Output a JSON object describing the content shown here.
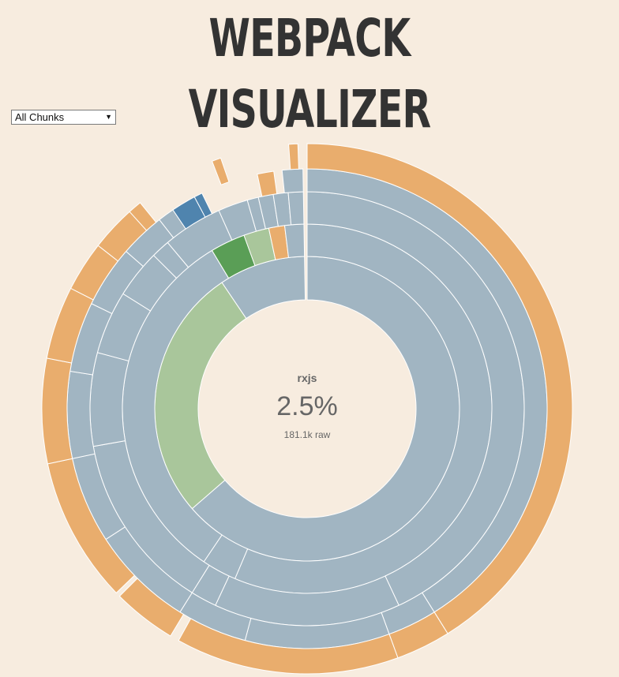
{
  "header": {
    "title": "WEBPACK VISUALIZER"
  },
  "controls": {
    "chunk_select_value": "All Chunks"
  },
  "details": {
    "module_name": "rxjs",
    "percentage": "2.5%",
    "raw_size": "181.1k raw"
  },
  "colors": {
    "background": "#f7ecdf",
    "default_module": "#a1b5c2",
    "leaf_module": "#e9ad6d",
    "highlight_light": "#a9c69b",
    "highlight_dark": "#5a9e56",
    "selected": "#4f84ae"
  }
}
